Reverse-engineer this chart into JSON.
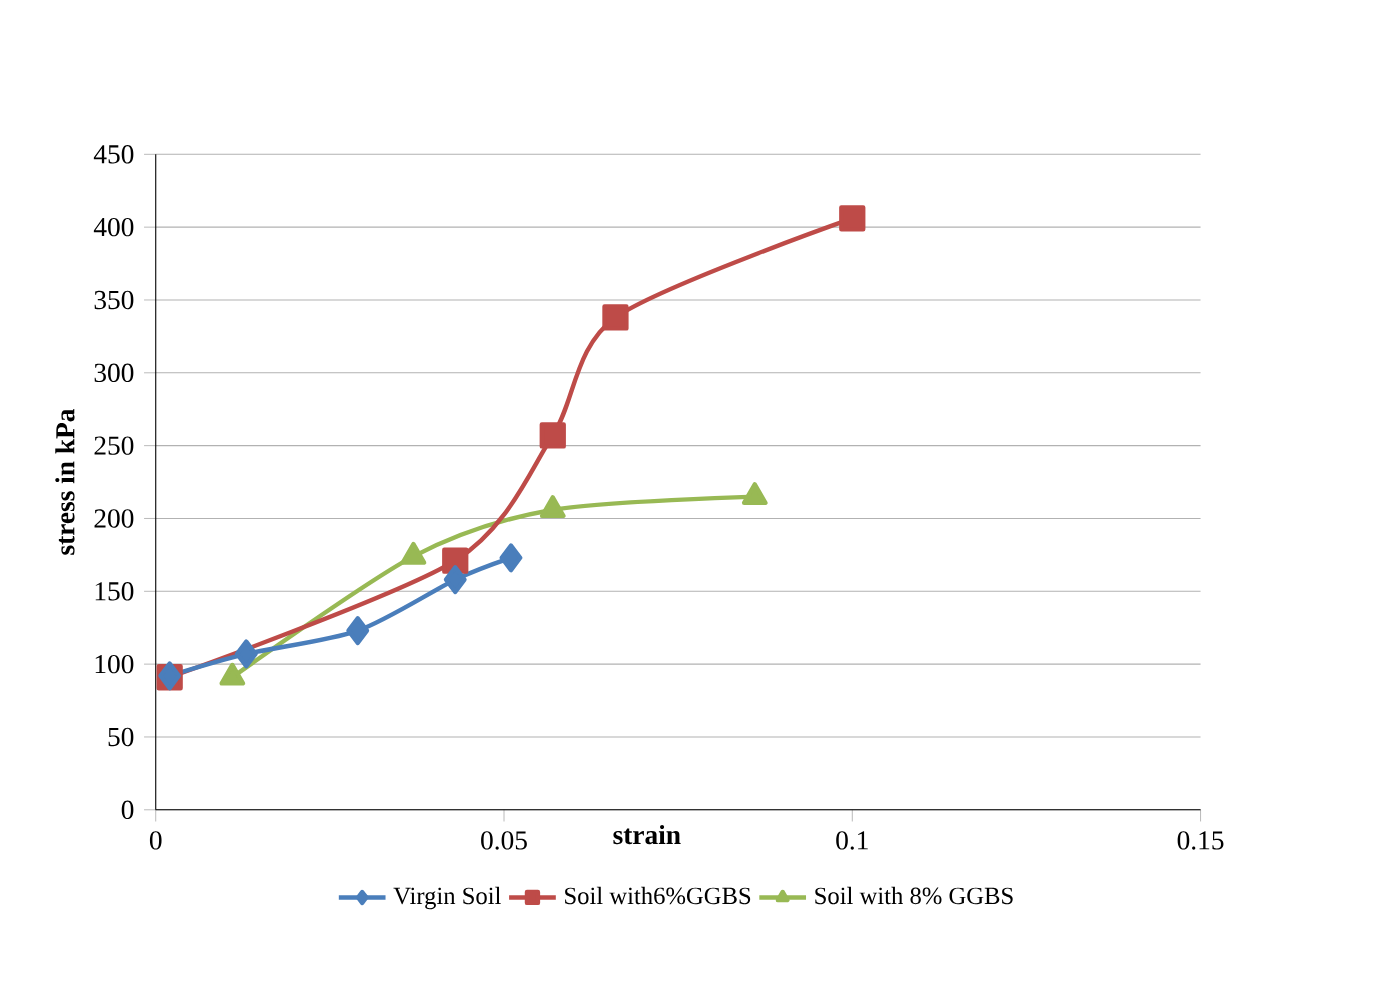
{
  "chart_data": {
    "type": "line",
    "xlabel": "strain",
    "ylabel": "stress in kPa",
    "xlim": [
      0,
      0.15
    ],
    "ylim": [
      0,
      450
    ],
    "xticks": [
      0,
      0.05,
      0.1,
      0.15
    ],
    "yticks": [
      0,
      50,
      100,
      150,
      200,
      250,
      300,
      350,
      400,
      450
    ],
    "grid": "y",
    "legend": "bottom",
    "series": [
      {
        "name": "Virgin Soil",
        "color": "#4a7ebb",
        "marker": "diamond",
        "x": [
          0.002,
          0.013,
          0.029,
          0.043,
          0.051
        ],
        "values": [
          92,
          107,
          123,
          158,
          173
        ]
      },
      {
        "name": "Soil with6%GGBS",
        "color": "#be4b48",
        "marker": "square",
        "x": [
          0.002,
          0.043,
          0.057,
          0.066,
          0.1
        ],
        "values": [
          91,
          171,
          257,
          338,
          406
        ]
      },
      {
        "name": "Soil with 8% GGBS",
        "color": "#98b954",
        "marker": "triangle",
        "x": [
          0.011,
          0.037,
          0.057,
          0.086
        ],
        "values": [
          91,
          174,
          206,
          215
        ]
      }
    ]
  }
}
